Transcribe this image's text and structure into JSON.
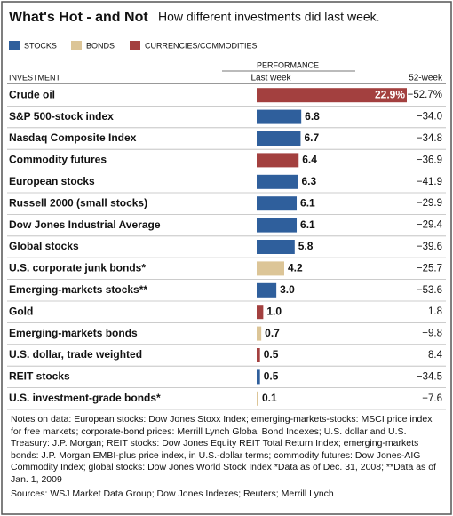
{
  "chart_data": {
    "type": "bar",
    "title": "What's Hot - and Not",
    "subtitle": "How different investments did last week.",
    "legend": [
      {
        "name": "STOCKS",
        "color": "#2f5f9c"
      },
      {
        "name": "BONDS",
        "color": "#dcc597"
      },
      {
        "name": "CURRENCIES/COMMODITIES",
        "color": "#a3403f"
      }
    ],
    "column_group": "PERFORMANCE",
    "column_headers": [
      "INVESTMENT",
      "Last week",
      "52-week"
    ],
    "categories": [
      "Crude oil",
      "S&P 500-stock index",
      "Nasdaq Composite Index",
      "Commodity futures",
      "European stocks",
      "Russell 2000 (small stocks)",
      "Dow Jones Industrial Average",
      "Global stocks",
      "U.S. corporate junk bonds*",
      "Emerging-markets stocks**",
      "Gold",
      "Emerging-markets bonds",
      "U.S. dollar, trade weighted",
      "REIT stocks",
      "U.S. investment-grade bonds*"
    ],
    "groups": [
      2,
      0,
      0,
      2,
      0,
      0,
      0,
      0,
      1,
      0,
      2,
      1,
      2,
      0,
      1
    ],
    "values": [
      22.9,
      6.8,
      6.7,
      6.4,
      6.3,
      6.1,
      6.1,
      5.8,
      4.2,
      3.0,
      1.0,
      0.7,
      0.5,
      0.5,
      0.1
    ],
    "value_labels": [
      "22.9%",
      "6.8",
      "6.7",
      "6.4",
      "6.3",
      "6.1",
      "6.1",
      "5.8",
      "4.2",
      "3.0",
      "1.0",
      "0.7",
      "0.5",
      "0.5",
      "0.1"
    ],
    "week52_values": [
      -52.7,
      -34.0,
      -34.8,
      -36.9,
      -41.9,
      -29.9,
      -29.4,
      -39.6,
      -25.7,
      -53.6,
      1.8,
      -9.8,
      8.4,
      -34.5,
      -7.6
    ],
    "week52_labels": [
      "−52.7%",
      "−34.0",
      "−34.8",
      "−36.9",
      "−41.9",
      "−29.9",
      "−29.4",
      "−39.6",
      "−25.7",
      "−53.6",
      "1.8",
      "−9.8",
      "8.4",
      "−34.5",
      "−7.6"
    ],
    "notes": "Notes on data: European stocks: Dow Jones Stoxx Index; emerging-markets-stocks: MSCI price index for free markets; corporate-bond prices: Merrill Lynch Global Bond Indexes; U.S. dollar and U.S. Treasury: J.P. Morgan; REIT stocks: Dow Jones Equity REIT Total Return Index; emerging-markets bonds: J.P. Morgan EMBI-plus price index, in U.S.-dollar terms; commodity futures: Dow Jones-AIG Commodity Index; global stocks: Dow Jones World Stock Index  *Data as of Dec. 31, 2008; **Data as of Jan. 1, 2009",
    "sources": "Sources: WSJ Market Data Group; Dow Jones Indexes; Reuters; Merrill Lynch"
  }
}
